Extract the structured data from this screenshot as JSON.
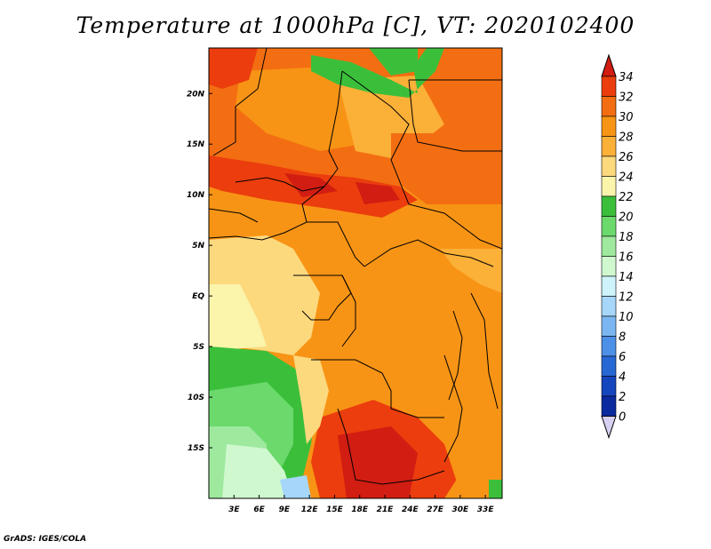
{
  "title": "Temperature at 1000hPa [C], VT: 2020102400",
  "credit": "GrADS: IGES/COLA",
  "map": {
    "lon_range": [
      0,
      35
    ],
    "lat_range": [
      -20,
      24.5
    ],
    "lon_ticks": [
      "3E",
      "6E",
      "9E",
      "12E",
      "15E",
      "18E",
      "21E",
      "24E",
      "27E",
      "30E",
      "33E"
    ],
    "lon_values": [
      3,
      6,
      9,
      12,
      15,
      18,
      21,
      24,
      27,
      30,
      33
    ],
    "lat_ticks": [
      "20N",
      "15N",
      "10N",
      "5N",
      "EQ",
      "5S",
      "10S",
      "15S"
    ],
    "lat_values": [
      20,
      15,
      10,
      5,
      0,
      -5,
      -10,
      -15
    ]
  },
  "colorbar": {
    "labels": [
      "34",
      "32",
      "30",
      "28",
      "26",
      "24",
      "22",
      "20",
      "18",
      "16",
      "14",
      "12",
      "10",
      "8",
      "6",
      "4",
      "2",
      "0"
    ],
    "colors": [
      "#d11d12",
      "#eb3d0d",
      "#f36e12",
      "#f89415",
      "#fbb038",
      "#fdd97e",
      "#fbf4ab",
      "#3bbf3b",
      "#6cd96c",
      "#9ee99e",
      "#cff8cf",
      "#cef3fb",
      "#a6d7fa",
      "#7bb6f2",
      "#4d90e7",
      "#2868d5",
      "#1646bd",
      "#0b2aa0",
      "#050978"
    ],
    "over_color": "#d11d12",
    "under_color": "#d7d0f2"
  }
}
